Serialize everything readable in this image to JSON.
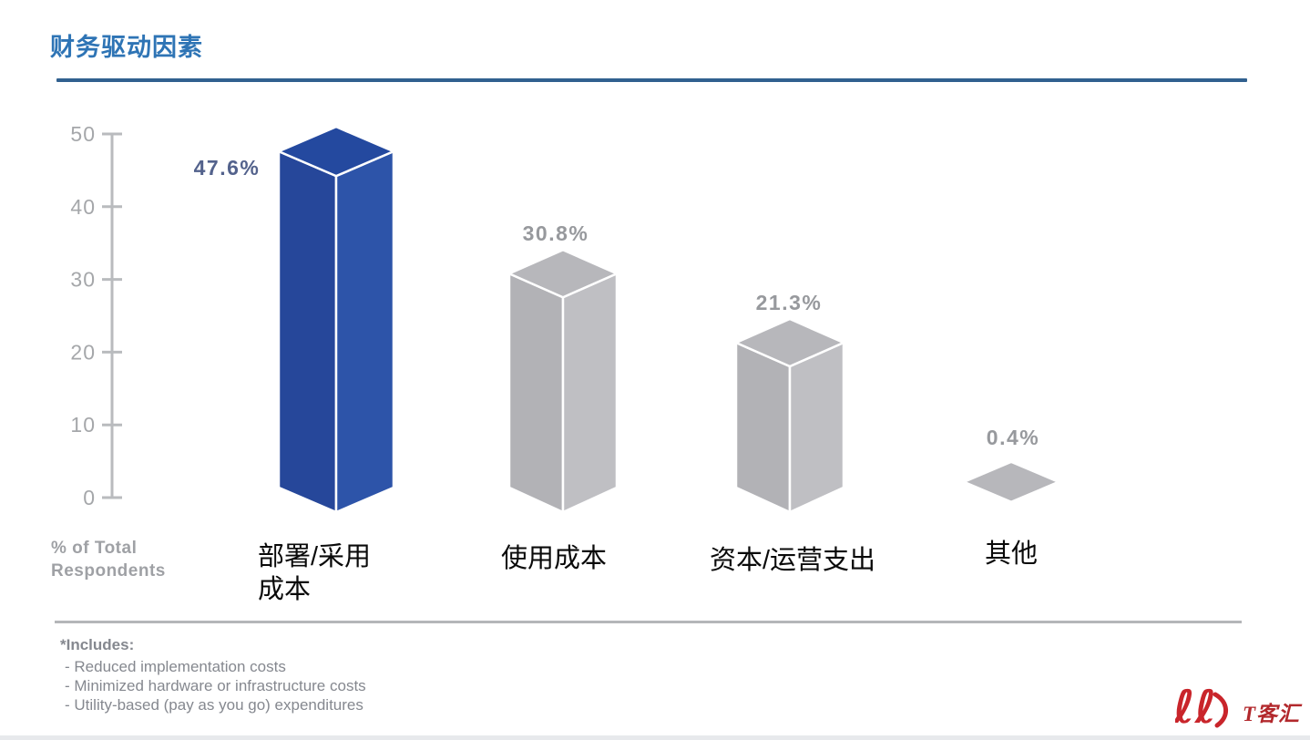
{
  "page": {
    "title": "财务驱动因素"
  },
  "axis": {
    "label_line1": "% of Total",
    "label_line2": "Respondents"
  },
  "chart_data": {
    "type": "bar",
    "style": "3d-column",
    "title": "财务驱动因素",
    "xlabel": "",
    "ylabel": "% of Total Respondents",
    "ylim": [
      0,
      50
    ],
    "yticks": [
      0,
      10,
      20,
      30,
      40,
      50
    ],
    "grid": false,
    "legend": "none",
    "categories": [
      "部署/采用成本",
      "使用成本",
      "资本/运营支出",
      "其他"
    ],
    "category_lines": [
      [
        "部署/采用",
        "成本"
      ],
      [
        "使用成本"
      ],
      [
        "资本/运营支出"
      ],
      [
        "其他"
      ]
    ],
    "values": [
      47.6,
      30.8,
      21.3,
      0.4
    ],
    "value_labels": [
      "47.6%",
      "30.8%",
      "21.3%",
      "0.4%"
    ],
    "value_label_colors": [
      "#53628c",
      "#97999d",
      "#97999d",
      "#97999d"
    ],
    "bar_face_colors": [
      {
        "left": "#26479a",
        "right": "#2d54a9",
        "top": "#24499f"
      },
      {
        "left": "#b2b2b6",
        "right": "#bfbfc3",
        "top": "#b7b7bb"
      },
      {
        "left": "#b2b2b6",
        "right": "#bfbfc3",
        "top": "#b7b7bb"
      },
      {
        "left": "#b2b2b6",
        "right": "#bfbfc3",
        "top": "#b7b7bb"
      }
    ],
    "axis_color": "#b9bbbe",
    "tick_label_color": "#a5a7aa"
  },
  "footnote": {
    "header": "*Includes:",
    "items": [
      "- Reduced implementation costs",
      "- Minimized hardware or infrastructure costs",
      "- Utility-based (pay as you go) expenditures"
    ]
  },
  "logo": {
    "text": "T客汇",
    "mark": "double-loop-swirl",
    "color": "#c9252b"
  },
  "theme": {
    "title_color": "#2e74b5",
    "title_rule_color": "#31608f",
    "divider_color": "#b4b6b9",
    "category_color": "#0a0a0a",
    "bottom_strip_color": "#e7e9ec"
  }
}
